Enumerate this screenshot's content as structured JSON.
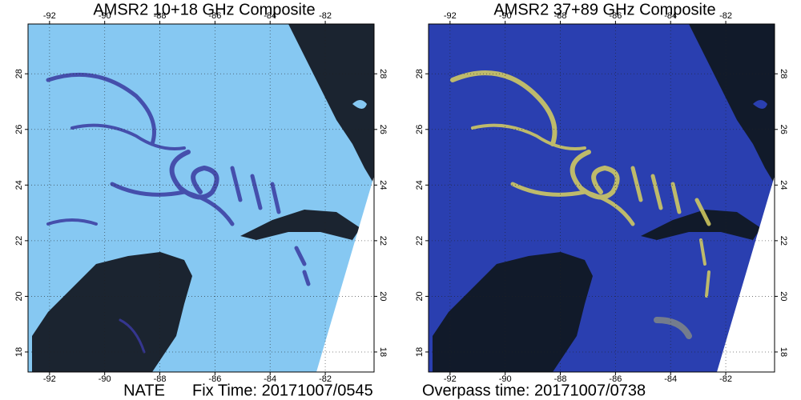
{
  "panels": [
    {
      "title": "AMSR2 10+18 GHz Composite",
      "lonlim": [
        -92.78,
        -80.23
      ],
      "latlim": [
        17.28,
        29.79
      ],
      "lon_ticks": [
        -92,
        -90,
        -88,
        -86,
        -84,
        -82
      ],
      "lat_ticks": [
        18,
        20,
        22,
        24,
        26,
        28
      ]
    },
    {
      "title": "AMSR2 37+89 GHz Composite",
      "lonlim": [
        -92.78,
        -80.23
      ],
      "latlim": [
        17.28,
        29.79
      ],
      "lon_ticks": [
        -92,
        -90,
        -88,
        -86,
        -84,
        -82
      ],
      "lat_ticks": [
        18,
        20,
        22,
        24,
        26,
        28
      ]
    }
  ],
  "footer": {
    "storm": "NATE",
    "fix_time": "Fix Time: 20171007/0545",
    "overpass_time": "Overpass time: 20171007/0738"
  }
}
